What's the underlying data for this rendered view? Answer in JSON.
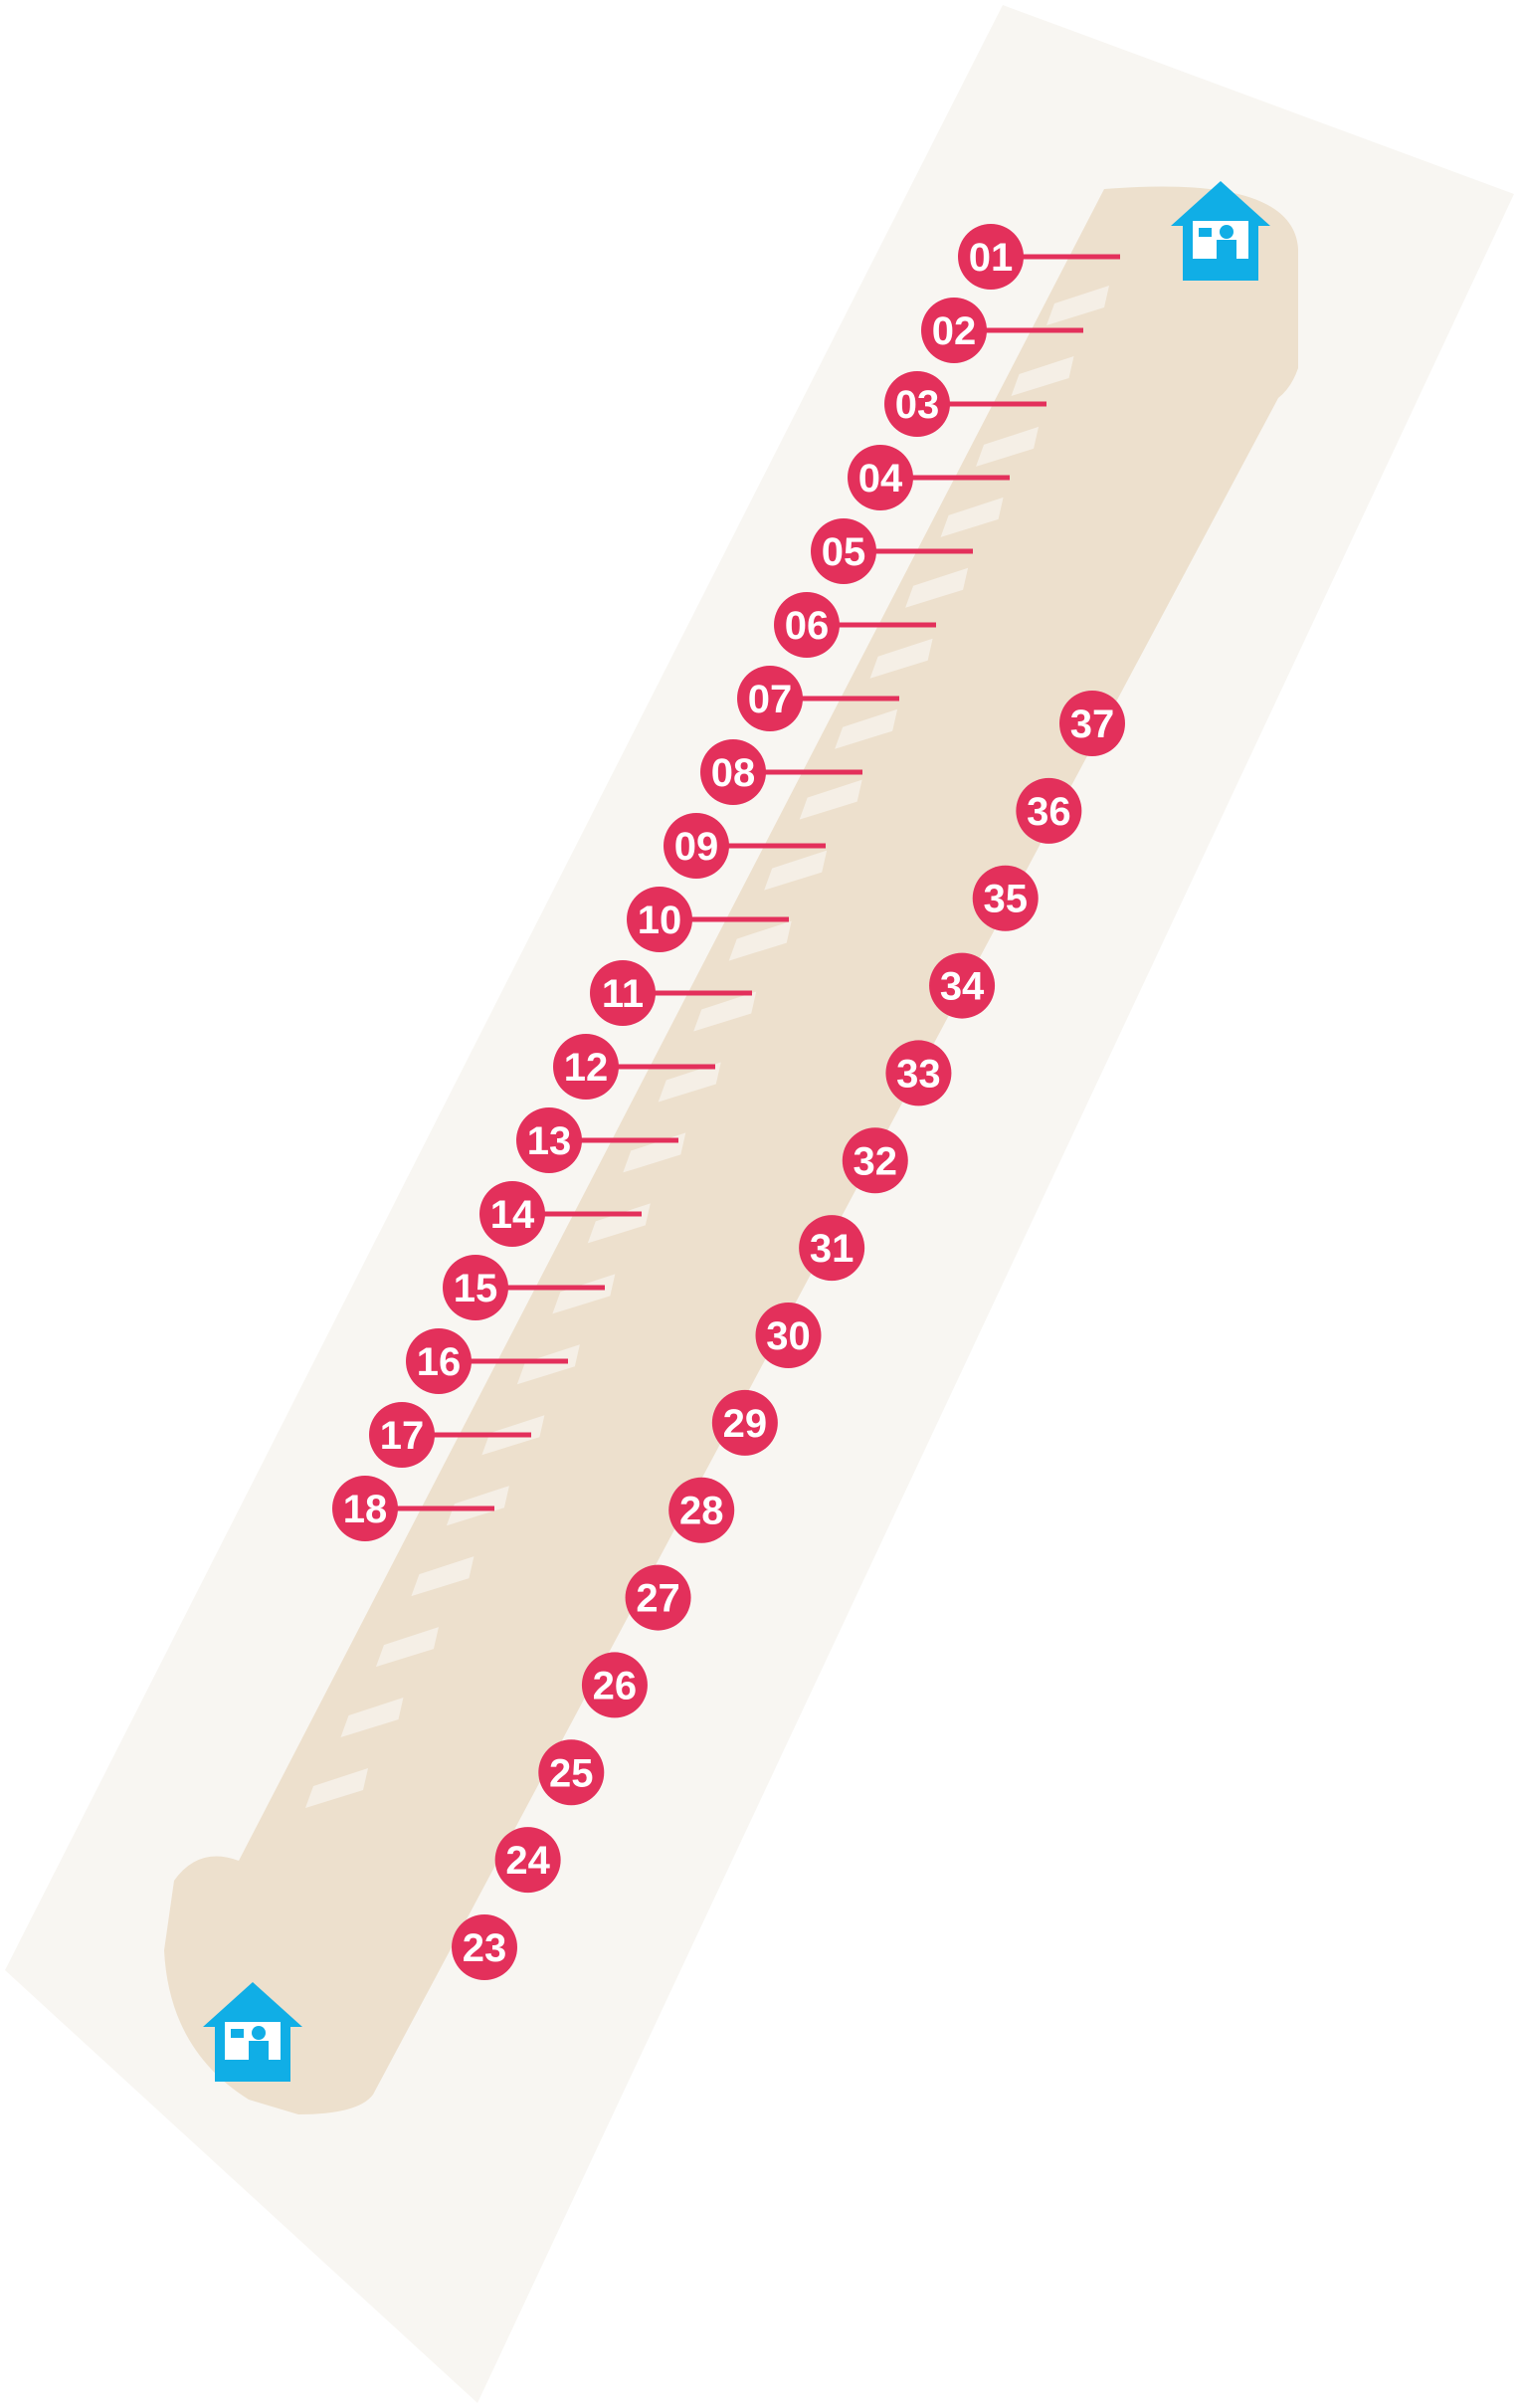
{
  "map": {
    "colors": {
      "background": "#ffffff",
      "outer_area": "#f8f6f2",
      "parking_surface": "#ede0cd",
      "bay_stripe": "#f5efe6",
      "marker": "#e3305b",
      "marker_text": "#ffffff",
      "pay_station": "#10aee6"
    },
    "pay_stations": [
      {
        "id": "pay-station-top",
        "icon": "ticket-booth-icon"
      },
      {
        "id": "pay-station-bottom",
        "icon": "ticket-booth-icon"
      }
    ],
    "left_row_spots": [
      "01",
      "02",
      "03",
      "04",
      "05",
      "06",
      "07",
      "08",
      "09",
      "10",
      "11",
      "12",
      "13",
      "14",
      "15",
      "16",
      "17",
      "18"
    ],
    "right_row_spots": [
      "37",
      "36",
      "35",
      "34",
      "33",
      "32",
      "31",
      "30",
      "29",
      "28",
      "27",
      "26",
      "25",
      "24",
      "23"
    ]
  }
}
